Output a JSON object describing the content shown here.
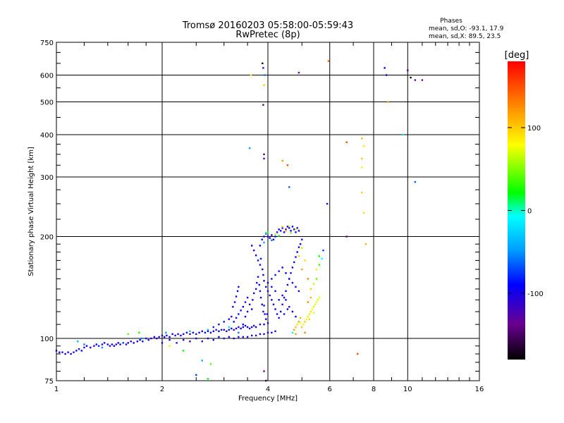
{
  "chart_data": {
    "type": "scatter",
    "title": "Tromsø 20160203 05:58:00-05:59:43",
    "subtitle": "RwPretec (8p)",
    "stats": {
      "heading": "Phases",
      "line_o": "mean, sd,O: -93.1, 17.9",
      "line_x": "mean, sd,X:  89.5, 23.5"
    },
    "xlabel": "Frequency [MHz]",
    "ylabel": "Stationary phase Virtual Height [km]",
    "x_scale": "log",
    "y_scale": "log",
    "xlim": [
      1,
      16
    ],
    "ylim": [
      75,
      750
    ],
    "x_ticks": [
      {
        "value": 1,
        "label": "1"
      },
      {
        "value": 2,
        "label": "2"
      },
      {
        "value": 4,
        "label": "4"
      },
      {
        "value": 6,
        "label": "6"
      },
      {
        "value": 8,
        "label": "8"
      },
      {
        "value": 10,
        "label": "10"
      },
      {
        "value": 16,
        "label": "16"
      }
    ],
    "y_ticks": [
      {
        "value": 75,
        "label": "75"
      },
      {
        "value": 100,
        "label": "100"
      },
      {
        "value": 200,
        "label": "200"
      },
      {
        "value": 300,
        "label": "300"
      },
      {
        "value": 400,
        "label": "400"
      },
      {
        "value": 500,
        "label": "500"
      },
      {
        "value": 600,
        "label": "600"
      },
      {
        "value": 750,
        "label": "750"
      }
    ],
    "grid": true,
    "colorbar": {
      "label": "[deg]",
      "range": [
        -180,
        180
      ],
      "ticks": [
        {
          "value": 100,
          "label": "100"
        },
        {
          "value": 0,
          "label": "0"
        },
        {
          "value": -100,
          "label": "-100"
        }
      ]
    },
    "point_fields": [
      "frequency_mhz",
      "virtual_height_km",
      "phase_deg"
    ],
    "points": [
      [
        1.0,
        92,
        -110
      ],
      [
        1.02,
        91,
        -105
      ],
      [
        1.04,
        91,
        -115
      ],
      [
        1.06,
        90,
        -100
      ],
      [
        1.08,
        91,
        -112
      ],
      [
        1.1,
        90,
        -98
      ],
      [
        1.12,
        91,
        -118
      ],
      [
        1.14,
        92,
        -104
      ],
      [
        1.16,
        93,
        -110
      ],
      [
        1.18,
        92,
        -95
      ],
      [
        1.2,
        94,
        -115
      ],
      [
        1.22,
        95,
        -102
      ],
      [
        1.25,
        94,
        -108
      ],
      [
        1.28,
        95,
        -120
      ],
      [
        1.3,
        96,
        -100
      ],
      [
        1.32,
        95,
        -90
      ],
      [
        1.35,
        96,
        -112
      ],
      [
        1.37,
        97,
        -105
      ],
      [
        1.4,
        96,
        -98
      ],
      [
        1.42,
        95,
        -115
      ],
      [
        1.44,
        96,
        -108
      ],
      [
        1.46,
        95,
        -100
      ],
      [
        1.48,
        96,
        -118
      ],
      [
        1.5,
        97,
        -104
      ],
      [
        1.52,
        96,
        -110
      ],
      [
        1.55,
        97,
        -95
      ],
      [
        1.58,
        96,
        -112
      ],
      [
        1.6,
        97,
        -106
      ],
      [
        1.63,
        98,
        -118
      ],
      [
        1.66,
        97,
        -100
      ],
      [
        1.7,
        98,
        -110
      ],
      [
        1.73,
        99,
        -104
      ],
      [
        1.76,
        98,
        -115
      ],
      [
        1.8,
        100,
        -96
      ],
      [
        1.83,
        99,
        -108
      ],
      [
        1.86,
        100,
        -112
      ],
      [
        1.9,
        101,
        -100
      ],
      [
        1.93,
        100,
        -118
      ],
      [
        1.96,
        101,
        -104
      ],
      [
        2.0,
        102,
        -110
      ],
      [
        2.03,
        101,
        -96
      ],
      [
        2.06,
        102,
        -114
      ],
      [
        2.1,
        101,
        -106
      ],
      [
        2.14,
        103,
        -100
      ],
      [
        2.18,
        102,
        -116
      ],
      [
        2.22,
        103,
        -108
      ],
      [
        2.26,
        102,
        -98
      ],
      [
        2.3,
        103,
        -112
      ],
      [
        2.35,
        104,
        -104
      ],
      [
        2.4,
        103,
        -118
      ],
      [
        2.45,
        104,
        -100
      ],
      [
        2.5,
        103,
        -110
      ],
      [
        2.55,
        104,
        -96
      ],
      [
        2.6,
        105,
        -114
      ],
      [
        2.65,
        104,
        -106
      ],
      [
        2.7,
        105,
        -100
      ],
      [
        2.75,
        104,
        -112
      ],
      [
        2.8,
        105,
        -104
      ],
      [
        2.85,
        106,
        -118
      ],
      [
        2.9,
        105,
        -98
      ],
      [
        2.95,
        106,
        -110
      ],
      [
        3.0,
        106,
        -102
      ],
      [
        3.05,
        105,
        -116
      ],
      [
        3.1,
        106,
        -108
      ],
      [
        3.15,
        107,
        -96
      ],
      [
        3.2,
        106,
        -112
      ],
      [
        3.25,
        107,
        -104
      ],
      [
        3.3,
        108,
        -118
      ],
      [
        3.35,
        107,
        -100
      ],
      [
        3.4,
        108,
        -110
      ],
      [
        3.45,
        109,
        -96
      ],
      [
        3.5,
        108,
        -114
      ],
      [
        3.55,
        107,
        -106
      ],
      [
        3.6,
        108,
        -100
      ],
      [
        3.65,
        109,
        -112
      ],
      [
        3.7,
        108,
        -104
      ],
      [
        3.8,
        110,
        -110
      ],
      [
        3.9,
        110,
        -98
      ],
      [
        4.0,
        111,
        -112
      ],
      [
        1.15,
        98,
        -40
      ],
      [
        1.2,
        96,
        -60
      ],
      [
        1.35,
        94,
        -55
      ],
      [
        1.55,
        97,
        -70
      ],
      [
        1.75,
        100,
        -55
      ],
      [
        2.05,
        104,
        -50
      ],
      [
        2.4,
        105,
        -35
      ],
      [
        2.7,
        106,
        -45
      ],
      [
        3.1,
        108,
        -20
      ],
      [
        3.3,
        104,
        -60
      ],
      [
        1.72,
        104,
        25
      ],
      [
        1.6,
        103,
        40
      ],
      [
        2.1,
        95,
        70
      ],
      [
        2.3,
        92,
        20
      ],
      [
        2.6,
        86,
        -45
      ],
      [
        2.75,
        84,
        40
      ],
      [
        2.0,
        97,
        -115
      ],
      [
        2.1,
        99,
        -108
      ],
      [
        2.2,
        97,
        -120
      ],
      [
        2.3,
        99,
        -104
      ],
      [
        2.4,
        98,
        -112
      ],
      [
        2.5,
        100,
        -98
      ],
      [
        2.6,
        98,
        -116
      ],
      [
        2.7,
        100,
        -106
      ],
      [
        2.8,
        99,
        -110
      ],
      [
        2.9,
        101,
        -100
      ],
      [
        3.0,
        100,
        -118
      ],
      [
        3.1,
        101,
        -104
      ],
      [
        3.2,
        100,
        -112
      ],
      [
        3.3,
        101,
        -96
      ],
      [
        3.4,
        101,
        -110
      ],
      [
        3.5,
        101,
        -102
      ],
      [
        3.6,
        102,
        -116
      ],
      [
        3.7,
        102,
        -108
      ],
      [
        3.8,
        103,
        -100
      ],
      [
        3.9,
        103,
        -112
      ],
      [
        4.0,
        104,
        -104
      ],
      [
        4.1,
        104,
        -96
      ],
      [
        4.2,
        105,
        -110
      ],
      [
        2.8,
        108,
        -90
      ],
      [
        2.9,
        110,
        -110
      ],
      [
        3.0,
        112,
        -95
      ],
      [
        3.1,
        114,
        -105
      ],
      [
        3.15,
        116,
        -115
      ],
      [
        3.2,
        112,
        -100
      ],
      [
        3.25,
        115,
        -108
      ],
      [
        3.3,
        118,
        -95
      ],
      [
        3.35,
        121,
        -110
      ],
      [
        3.4,
        124,
        -100
      ],
      [
        3.45,
        128,
        -112
      ],
      [
        3.5,
        132,
        -104
      ],
      [
        3.55,
        126,
        -110
      ],
      [
        3.6,
        122,
        -98
      ],
      [
        3.62,
        130,
        -108
      ],
      [
        3.65,
        136,
        -115
      ],
      [
        3.7,
        140,
        -100
      ],
      [
        3.72,
        146,
        -110
      ],
      [
        3.75,
        152,
        -104
      ],
      [
        3.78,
        144,
        -95
      ],
      [
        3.8,
        138,
        -112
      ],
      [
        3.82,
        132,
        -102
      ],
      [
        3.85,
        126,
        -108
      ],
      [
        3.88,
        120,
        -118
      ],
      [
        3.9,
        125,
        -100
      ],
      [
        3.92,
        118,
        -110
      ],
      [
        3.95,
        114,
        -104
      ],
      [
        3.98,
        118,
        -96
      ],
      [
        3.5,
        120,
        -112
      ],
      [
        3.45,
        116,
        -104
      ],
      [
        3.4,
        110,
        -98
      ],
      [
        3.25,
        133,
        -108
      ],
      [
        3.28,
        138,
        -100
      ],
      [
        3.3,
        142,
        -112
      ],
      [
        3.22,
        128,
        -106
      ],
      [
        3.18,
        124,
        -98
      ],
      [
        3.8,
        188,
        -100
      ],
      [
        3.85,
        196,
        -110
      ],
      [
        3.9,
        200,
        -104
      ],
      [
        3.95,
        204,
        -96
      ],
      [
        4.0,
        200,
        -108
      ],
      [
        4.05,
        198,
        -100
      ],
      [
        4.1,
        202,
        -112
      ],
      [
        4.15,
        196,
        -104
      ],
      [
        4.2,
        200,
        -98
      ],
      [
        4.25,
        206,
        -110
      ],
      [
        4.3,
        210,
        -104
      ],
      [
        4.35,
        208,
        -96
      ],
      [
        4.4,
        212,
        -108
      ],
      [
        4.45,
        206,
        -100
      ],
      [
        4.5,
        210,
        -112
      ],
      [
        4.55,
        214,
        -104
      ],
      [
        4.6,
        212,
        -96
      ],
      [
        4.65,
        208,
        -108
      ],
      [
        4.7,
        214,
        -100
      ],
      [
        4.75,
        210,
        -110
      ],
      [
        4.8,
        206,
        -102
      ],
      [
        4.85,
        212,
        -115
      ],
      [
        4.9,
        208,
        -104
      ],
      [
        3.95,
        205,
        -20
      ],
      [
        4.0,
        206,
        30
      ],
      [
        4.2,
        203,
        55
      ],
      [
        4.4,
        214,
        95
      ],
      [
        4.5,
        208,
        110
      ],
      [
        4.6,
        215,
        80
      ],
      [
        4.65,
        205,
        50
      ],
      [
        4.8,
        210,
        70
      ],
      [
        4.3,
        201,
        20
      ],
      [
        4.1,
        195,
        -60
      ],
      [
        3.9,
        192,
        -45
      ],
      [
        3.6,
        188,
        -104
      ],
      [
        3.65,
        182,
        -110
      ],
      [
        3.7,
        176,
        -100
      ],
      [
        3.75,
        170,
        -112
      ],
      [
        3.8,
        165,
        -104
      ],
      [
        3.82,
        172,
        -96
      ],
      [
        3.86,
        160,
        -108
      ],
      [
        3.88,
        154,
        -100
      ],
      [
        3.9,
        148,
        -112
      ],
      [
        3.95,
        142,
        -104
      ],
      [
        4.0,
        138,
        -96
      ],
      [
        4.05,
        134,
        -108
      ],
      [
        4.1,
        130,
        -100
      ],
      [
        4.15,
        126,
        -112
      ],
      [
        4.2,
        122,
        -104
      ],
      [
        4.25,
        118,
        -96
      ],
      [
        4.3,
        115,
        -108
      ],
      [
        4.35,
        120,
        -100
      ],
      [
        4.4,
        126,
        -112
      ],
      [
        4.45,
        132,
        -104
      ],
      [
        4.5,
        138,
        -96
      ],
      [
        4.55,
        144,
        -108
      ],
      [
        4.6,
        150,
        -100
      ],
      [
        4.65,
        156,
        -112
      ],
      [
        4.7,
        162,
        -104
      ],
      [
        4.75,
        168,
        -96
      ],
      [
        4.8,
        174,
        -108
      ],
      [
        4.85,
        180,
        -100
      ],
      [
        4.9,
        186,
        -112
      ],
      [
        4.95,
        190,
        -104
      ],
      [
        5.0,
        196,
        -96
      ],
      [
        4.0,
        146,
        -100
      ],
      [
        4.1,
        150,
        -108
      ],
      [
        4.2,
        154,
        -96
      ],
      [
        4.3,
        158,
        -112
      ],
      [
        4.4,
        162,
        -104
      ],
      [
        4.5,
        156,
        -100
      ],
      [
        4.6,
        150,
        -110
      ],
      [
        4.7,
        146,
        -98
      ],
      [
        4.8,
        142,
        -108
      ],
      [
        4.9,
        138,
        -100
      ],
      [
        4.4,
        134,
        -112
      ],
      [
        4.3,
        130,
        -104
      ],
      [
        4.2,
        138,
        -96
      ],
      [
        4.1,
        142,
        -108
      ],
      [
        4.5,
        130,
        -100
      ],
      [
        4.6,
        124,
        -112
      ],
      [
        4.7,
        120,
        -104
      ],
      [
        4.8,
        116,
        -96
      ],
      [
        4.9,
        112,
        -108
      ],
      [
        5.0,
        108,
        -100
      ],
      [
        4.45,
        118,
        -110
      ],
      [
        4.55,
        122,
        -104
      ],
      [
        4.7,
        104,
        -5
      ],
      [
        4.75,
        106,
        120
      ],
      [
        4.8,
        108,
        105
      ],
      [
        4.85,
        110,
        90
      ],
      [
        4.9,
        112,
        100
      ],
      [
        4.95,
        111,
        80
      ],
      [
        5.0,
        108,
        95
      ],
      [
        5.05,
        110,
        75
      ],
      [
        5.1,
        112,
        100
      ],
      [
        5.15,
        114,
        85
      ],
      [
        5.2,
        116,
        90
      ],
      [
        5.25,
        118,
        70
      ],
      [
        5.3,
        120,
        95
      ],
      [
        5.35,
        122,
        80
      ],
      [
        5.4,
        124,
        90
      ],
      [
        5.45,
        126,
        75
      ],
      [
        5.5,
        128,
        85
      ],
      [
        5.55,
        130,
        70
      ],
      [
        5.6,
        132,
        80
      ],
      [
        4.8,
        103,
        120
      ],
      [
        4.95,
        115,
        110
      ],
      [
        5.1,
        104,
        130
      ],
      [
        5.25,
        114,
        95
      ],
      [
        5.4,
        119,
        85
      ],
      [
        5.0,
        160,
        115
      ],
      [
        5.1,
        170,
        95
      ],
      [
        5.2,
        150,
        130
      ],
      [
        5.3,
        140,
        100
      ],
      [
        5.4,
        145,
        65
      ],
      [
        5.5,
        150,
        40
      ],
      [
        5.6,
        165,
        30
      ],
      [
        5.7,
        172,
        -10
      ],
      [
        5.75,
        182,
        -80
      ],
      [
        4.9,
        175,
        100
      ],
      [
        5.0,
        185,
        60
      ],
      [
        5.6,
        175,
        20
      ],
      [
        5.5,
        160,
        85
      ],
      [
        5.3,
        132,
        110
      ],
      [
        5.2,
        128,
        125
      ],
      [
        3.86,
        650,
        -175
      ],
      [
        3.88,
        630,
        -120
      ],
      [
        3.92,
        600,
        -60
      ],
      [
        3.9,
        560,
        100
      ],
      [
        3.88,
        490,
        -150
      ],
      [
        3.58,
        600,
        80
      ],
      [
        3.55,
        365,
        -50
      ],
      [
        3.9,
        350,
        -150
      ],
      [
        3.9,
        340,
        -120
      ],
      [
        4.4,
        335,
        120
      ],
      [
        4.55,
        325,
        150
      ],
      [
        4.6,
        280,
        -70
      ],
      [
        4.9,
        610,
        -130
      ],
      [
        5.9,
        250,
        -120
      ],
      [
        5.95,
        660,
        140
      ],
      [
        6.7,
        380,
        150
      ],
      [
        6.7,
        200,
        -130
      ],
      [
        7.2,
        90,
        150
      ],
      [
        7.4,
        390,
        110
      ],
      [
        7.5,
        370,
        90
      ],
      [
        7.4,
        340,
        100
      ],
      [
        7.4,
        320,
        85
      ],
      [
        7.4,
        270,
        100
      ],
      [
        7.5,
        235,
        90
      ],
      [
        7.6,
        190,
        110
      ],
      [
        8.6,
        630,
        -100
      ],
      [
        8.7,
        600,
        -100
      ],
      [
        8.8,
        500,
        120
      ],
      [
        9.7,
        400,
        -20
      ],
      [
        10.0,
        620,
        -130
      ],
      [
        10.2,
        590,
        -180
      ],
      [
        10.5,
        580,
        -140
      ],
      [
        11.0,
        580,
        -140
      ],
      [
        10.5,
        290,
        -70
      ],
      [
        2.5,
        78,
        -80
      ],
      [
        2.7,
        76,
        20
      ],
      [
        3.9,
        80,
        -140
      ],
      [
        3.95,
        75,
        -150
      ]
    ]
  }
}
